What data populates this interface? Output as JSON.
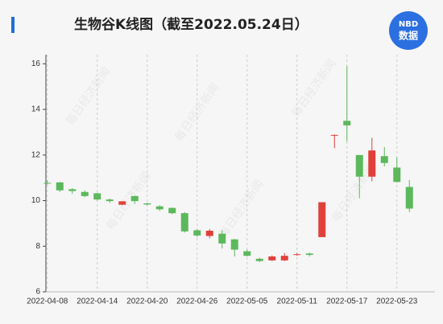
{
  "chart_data": {
    "type": "candlestick",
    "title": "生物谷K线图（截至2022.05.24日）",
    "logo": {
      "top": "NBD",
      "bottom": "数据"
    },
    "watermark": "每日经济新闻",
    "categories": [
      "2022-04-08",
      null,
      null,
      null,
      "2022-04-14",
      null,
      null,
      null,
      "2022-04-20",
      null,
      null,
      null,
      "2022-04-26",
      null,
      null,
      null,
      "2022-05-05",
      null,
      null,
      null,
      "2022-05-11",
      null,
      null,
      null,
      "2022-05-17",
      null,
      null,
      null,
      "2022-05-23",
      null
    ],
    "open": [
      10.78,
      10.8,
      10.5,
      10.38,
      10.32,
      10.05,
      9.82,
      10.2,
      9.88,
      9.75,
      9.68,
      9.45,
      8.7,
      8.45,
      8.55,
      8.3,
      7.78,
      7.45,
      7.38,
      7.38,
      7.62,
      7.68,
      8.4,
      12.85,
      13.5,
      12.0,
      11.05,
      11.95,
      11.45,
      10.6
    ],
    "high": [
      10.9,
      10.82,
      10.55,
      10.45,
      10.35,
      10.1,
      9.98,
      10.22,
      9.9,
      9.8,
      9.7,
      9.5,
      8.75,
      8.75,
      8.7,
      8.32,
      7.85,
      7.5,
      7.6,
      7.7,
      7.7,
      7.72,
      9.93,
      12.9,
      15.9,
      12.0,
      12.75,
      12.35,
      11.9,
      10.9
    ],
    "low": [
      10.7,
      10.38,
      10.3,
      10.15,
      10.0,
      9.9,
      9.8,
      9.85,
      9.8,
      9.55,
      9.4,
      8.6,
      8.4,
      8.35,
      7.9,
      7.55,
      7.55,
      7.3,
      7.35,
      7.35,
      7.58,
      7.55,
      8.4,
      12.3,
      12.6,
      10.1,
      10.85,
      11.5,
      10.8,
      9.5
    ],
    "close": [
      10.75,
      10.45,
      10.42,
      10.2,
      10.05,
      9.98,
      9.97,
      9.98,
      9.83,
      9.62,
      9.45,
      8.65,
      8.47,
      8.68,
      8.12,
      7.85,
      7.58,
      7.35,
      7.55,
      7.58,
      7.65,
      7.62,
      9.93,
      12.88,
      13.3,
      11.05,
      12.2,
      11.65,
      10.82,
      9.65
    ],
    "up_color": "#e0403a",
    "down_color": "#5cb85c",
    "ylim": [
      6,
      16.4
    ],
    "yticks": [
      6,
      8,
      10,
      12,
      14,
      16
    ],
    "grid": "x"
  }
}
